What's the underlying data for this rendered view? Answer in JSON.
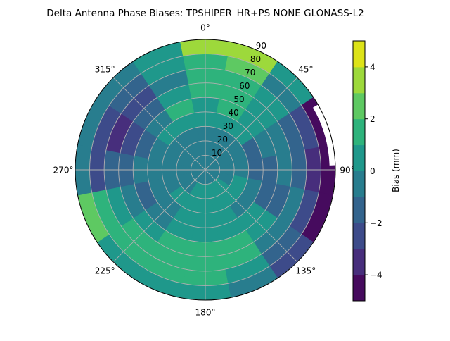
{
  "chart_data": {
    "type": "heatmap",
    "subtype": "polar-contour",
    "title": "Delta Antenna Phase Biases: TPSHIPER_HR+PS  NONE GLONASS-L2",
    "angle_tick_labels": [
      "0°",
      "45°",
      "90°",
      "135°",
      "180°",
      "225°",
      "270°",
      "315°"
    ],
    "radial_tick_labels": [
      "10",
      "20",
      "30",
      "40",
      "50",
      "60",
      "70",
      "80",
      "90"
    ],
    "radial_range": [
      0,
      90
    ],
    "grid": true,
    "colorbar": {
      "label": "Bias (mm)",
      "levels": [
        -5,
        -4,
        -3,
        -2,
        -1,
        0,
        1,
        2,
        3,
        4,
        5
      ],
      "tick_values": [
        -4,
        -2,
        0,
        2,
        4
      ],
      "tick_labels": [
        "−4",
        "−2",
        "0",
        "2",
        "4"
      ],
      "colors": [
        "#460b5e",
        "#472e7c",
        "#3d4b8a",
        "#33648d",
        "#287d8e",
        "#1f988b",
        "#2eb37c",
        "#5ec962",
        "#9dd93b",
        "#dde318"
      ],
      "placement": "right"
    },
    "azimuths": [
      0,
      22.5,
      45,
      67.5,
      90,
      112.5,
      135,
      157.5,
      180,
      202.5,
      225,
      247.5,
      270,
      292.5,
      315,
      337.5
    ],
    "ring_bounds": [
      0,
      10,
      20,
      30,
      40,
      50,
      60,
      70,
      80,
      90
    ],
    "values": [
      [
        -0.5,
        -0.5,
        -0.5,
        0.5,
        0.5,
        1.5,
        1.5,
        1.5,
        3.5
      ],
      [
        -0.5,
        -0.5,
        -0.5,
        0.5,
        1.5,
        1.5,
        1.5,
        2.5,
        3.5
      ],
      [
        -0.5,
        -0.5,
        -0.5,
        0.5,
        0.5,
        0.5,
        0.5,
        -0.5,
        0.5
      ],
      [
        -0.5,
        -0.5,
        -0.5,
        -1.5,
        -0.5,
        -0.5,
        -1.5,
        -2.5,
        -4.5
      ],
      [
        -0.5,
        -0.5,
        -0.5,
        -1.5,
        -1.5,
        -0.5,
        -1.5,
        -3.5,
        -4.5
      ],
      [
        -0.5,
        -0.5,
        0.5,
        -0.5,
        -1.5,
        -1.5,
        -0.5,
        -2.5,
        -4.5
      ],
      [
        -0.5,
        0.5,
        0.5,
        -0.5,
        0.5,
        0.5,
        -0.5,
        -1.5,
        -2.5
      ],
      [
        -0.5,
        0.5,
        0.5,
        0.5,
        0.5,
        1.5,
        1.5,
        0.5,
        -0.5
      ],
      [
        -0.5,
        0.5,
        0.5,
        0.5,
        0.5,
        1.5,
        1.5,
        1.5,
        0.5
      ],
      [
        -0.5,
        0.5,
        0.5,
        0.5,
        0.5,
        1.5,
        1.5,
        1.5,
        0.5
      ],
      [
        -0.5,
        -0.5,
        0.5,
        -0.5,
        -0.5,
        0.5,
        1.5,
        1.5,
        0.5
      ],
      [
        -0.5,
        -0.5,
        -0.5,
        -0.5,
        -1.5,
        -0.5,
        0.5,
        1.5,
        2.5
      ],
      [
        -0.5,
        -0.5,
        -0.5,
        -0.5,
        -0.5,
        -1.5,
        -1.5,
        -2.5,
        -0.5
      ],
      [
        -0.5,
        -0.5,
        -0.5,
        -0.5,
        -1.5,
        -2.5,
        -3.5,
        -2.5,
        -0.5
      ],
      [
        -0.5,
        -0.5,
        -0.5,
        0.5,
        -0.5,
        -1.5,
        -2.5,
        -1.5,
        -0.5
      ],
      [
        -0.5,
        -0.5,
        -0.5,
        0.5,
        1.5,
        0.5,
        -0.5,
        0.5,
        0.5
      ]
    ]
  }
}
